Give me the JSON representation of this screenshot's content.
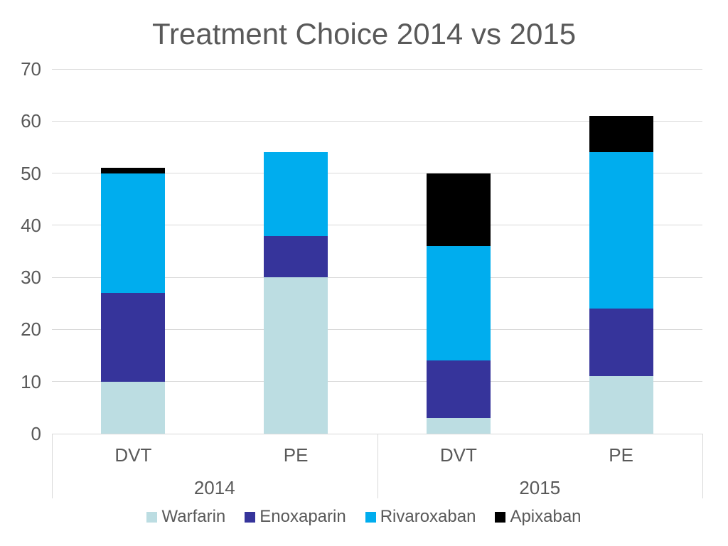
{
  "title": "Treatment Choice 2014 vs 2015",
  "chart_data": {
    "type": "bar",
    "stacked": true,
    "title": "Treatment Choice 2014 vs 2015",
    "categories": [
      "DVT",
      "PE",
      "DVT",
      "PE"
    ],
    "groups": [
      {
        "label": "2014",
        "start": 0,
        "end": 2
      },
      {
        "label": "2015",
        "start": 2,
        "end": 4
      }
    ],
    "series": [
      {
        "name": "Warfarin",
        "color": "#bcdde2",
        "values": [
          10,
          30,
          3,
          11
        ]
      },
      {
        "name": "Enoxaparin",
        "color": "#36349b",
        "values": [
          17,
          8,
          11,
          13
        ]
      },
      {
        "name": "Rivaroxaban",
        "color": "#00adee",
        "values": [
          23,
          16,
          22,
          30
        ]
      },
      {
        "name": "Apixaban",
        "color": "#000000",
        "values": [
          1,
          0,
          14,
          7
        ]
      }
    ],
    "totals": [
      51,
      54,
      50,
      61
    ],
    "ylim": [
      0,
      70
    ],
    "yticks": [
      0,
      10,
      20,
      30,
      40,
      50,
      60,
      70
    ],
    "xlabel": "",
    "ylabel": "",
    "grid": true,
    "legend_position": "bottom",
    "text_color": "#595959",
    "gridline_color": "#d9d9d9",
    "background_color": "#ffffff"
  }
}
